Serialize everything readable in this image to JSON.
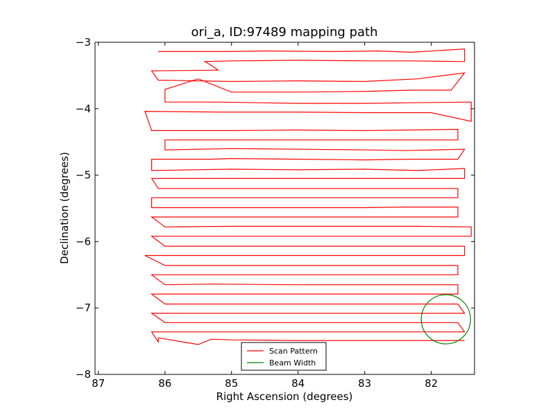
{
  "chart_data": {
    "type": "line",
    "title": "ori_a, ID:97489 mapping path",
    "xlabel": "Right Ascension (degrees)",
    "ylabel": "Declination (degrees)",
    "xlim": [
      87.05,
      81.35
    ],
    "ylim": [
      -8,
      -3
    ],
    "x_axis_reversed": true,
    "xticks": [
      87,
      86,
      85,
      84,
      83,
      82
    ],
    "xtick_labels": [
      "87",
      "86",
      "85",
      "84",
      "83",
      "82"
    ],
    "yticks": [
      -3,
      -4,
      -5,
      -6,
      -7,
      -8
    ],
    "ytick_labels": [
      "−3",
      "−4",
      "−5",
      "−6",
      "−7",
      "−8"
    ],
    "grid": false,
    "legend": {
      "placement": "lower center",
      "entries": [
        {
          "label": "Scan Pattern",
          "color": "#ff0000"
        },
        {
          "label": "Beam Width",
          "color": "#008000"
        }
      ]
    },
    "series": [
      {
        "name": "Scan Pattern",
        "color": "#ff0000",
        "kind": "path",
        "x": [
          86.1,
          86.1,
          85.5,
          85.3,
          85.1,
          84.5,
          83.5,
          82.8,
          82.3,
          81.5,
          81.5,
          82.3,
          83.0,
          84.0,
          85.0,
          85.4,
          85.3,
          85.2,
          86.2,
          86.1,
          85.0,
          84.0,
          83.0,
          82.2,
          81.5,
          81.7,
          82.3,
          83.0,
          84.0,
          85.0,
          85.5,
          86.0,
          86.0,
          86.0,
          85.2,
          84.0,
          83.0,
          82.3,
          81.4,
          81.4,
          82.0,
          83.0,
          84.0,
          85.2,
          86.3,
          86.2,
          85.0,
          84.0,
          83.0,
          82.3,
          81.6,
          81.6,
          82.2,
          83.0,
          84.0,
          85.0,
          86.0,
          86.0,
          86.0,
          85.0,
          84.0,
          83.0,
          82.4,
          81.5,
          81.6,
          82.3,
          83.0,
          84.0,
          85.0,
          85.3,
          86.2,
          86.2,
          85.0,
          84.0,
          83.0,
          82.2,
          81.5,
          81.5,
          82.2,
          83.0,
          84.0,
          85.0,
          86.2,
          86.1,
          85.0,
          84.0,
          83.0,
          82.0,
          81.6,
          81.6,
          82.2,
          83.0,
          84.0,
          85.0,
          86.2,
          86.2,
          85.2,
          84.0,
          83.0,
          82.4,
          81.6,
          81.6,
          82.3,
          83.0,
          84.0,
          85.0,
          86.2,
          86.0,
          85.0,
          84.0,
          83.0,
          82.2,
          81.4,
          81.4,
          82.4,
          83.0,
          84.0,
          85.0,
          85.4,
          86.2,
          86.0,
          85.0,
          84.0,
          83.0,
          82.2,
          81.5,
          81.5,
          82.3,
          83.0,
          84.0,
          85.0,
          86.3,
          86.0,
          85.0,
          84.0,
          83.0,
          82.2,
          81.6,
          81.6,
          82.3,
          83.0,
          84.0,
          85.0,
          85.3,
          86.2,
          86.0,
          85.3,
          84.0,
          83.0,
          82.2,
          81.6,
          81.6,
          82.2,
          83.0,
          84.0,
          85.0,
          86.2,
          86.0,
          85.0,
          84.0,
          83.0,
          82.0,
          81.6,
          81.5,
          82.0,
          83.0,
          84.0,
          85.0,
          86.2,
          86.0,
          85.0,
          84.0,
          83.0,
          82.0,
          81.6,
          81.5,
          82.0,
          83.0,
          84.0,
          85.0,
          86.2,
          86.1,
          86.1,
          85.5,
          85.3,
          85.0,
          84.0,
          83.0,
          82.0,
          81.5
        ],
        "y": [
          -3.14,
          -3.14,
          -3.14,
          -3.14,
          -3.14,
          -3.13,
          -3.14,
          -3.13,
          -3.15,
          -3.1,
          -3.29,
          -3.28,
          -3.28,
          -3.27,
          -3.28,
          -3.29,
          -3.35,
          -3.42,
          -3.43,
          -3.57,
          -3.59,
          -3.58,
          -3.59,
          -3.55,
          -3.46,
          -3.72,
          -3.72,
          -3.74,
          -3.75,
          -3.75,
          -3.55,
          -3.71,
          -3.72,
          -3.9,
          -3.9,
          -3.92,
          -3.92,
          -3.91,
          -3.9,
          -4.19,
          -4.06,
          -4.06,
          -4.05,
          -4.05,
          -4.04,
          -4.33,
          -4.33,
          -4.32,
          -4.33,
          -4.32,
          -4.31,
          -4.47,
          -4.47,
          -4.47,
          -4.47,
          -4.47,
          -4.47,
          -4.47,
          -4.62,
          -4.6,
          -4.61,
          -4.62,
          -4.63,
          -4.61,
          -4.76,
          -4.76,
          -4.77,
          -4.76,
          -4.75,
          -4.76,
          -4.76,
          -4.93,
          -4.91,
          -4.92,
          -4.91,
          -4.93,
          -4.9,
          -5.05,
          -5.05,
          -5.05,
          -5.05,
          -5.05,
          -5.05,
          -5.2,
          -5.2,
          -5.2,
          -5.2,
          -5.2,
          -5.2,
          -5.34,
          -5.34,
          -5.34,
          -5.34,
          -5.34,
          -5.34,
          -5.49,
          -5.49,
          -5.49,
          -5.49,
          -5.48,
          -5.48,
          -5.63,
          -5.63,
          -5.63,
          -5.63,
          -5.63,
          -5.63,
          -5.78,
          -5.77,
          -5.77,
          -5.77,
          -5.77,
          -5.78,
          -5.92,
          -5.92,
          -5.92,
          -5.92,
          -5.92,
          -5.92,
          -5.92,
          -6.07,
          -6.07,
          -6.07,
          -6.07,
          -6.07,
          -6.07,
          -6.21,
          -6.21,
          -6.21,
          -6.21,
          -6.21,
          -6.21,
          -6.36,
          -6.36,
          -6.36,
          -6.36,
          -6.36,
          -6.36,
          -6.5,
          -6.5,
          -6.5,
          -6.5,
          -6.5,
          -6.5,
          -6.5,
          -6.65,
          -6.64,
          -6.65,
          -6.65,
          -6.65,
          -6.65,
          -6.79,
          -6.79,
          -6.79,
          -6.79,
          -6.79,
          -6.79,
          -6.94,
          -6.94,
          -6.94,
          -6.94,
          -6.94,
          -6.94,
          -7.08,
          -7.08,
          -7.08,
          -7.08,
          -7.08,
          -7.08,
          -7.22,
          -7.22,
          -7.22,
          -7.22,
          -7.22,
          -7.22,
          -7.36,
          -7.36,
          -7.36,
          -7.36,
          -7.36,
          -7.36,
          -7.51,
          -7.45,
          -7.55,
          -7.47,
          -7.48,
          -7.49,
          -7.49,
          -7.49,
          -7.49
        ]
      },
      {
        "name": "Beam Width",
        "color": "#008000",
        "kind": "circle",
        "center": [
          81.78,
          -7.17
        ],
        "radius_deg": 0.37
      }
    ]
  }
}
